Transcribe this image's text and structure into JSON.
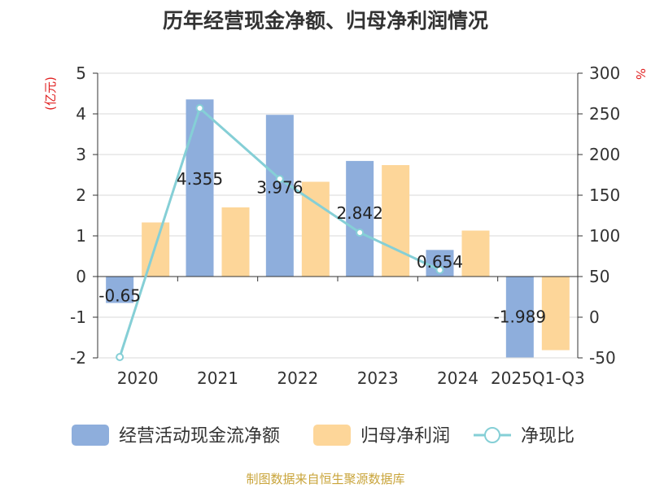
{
  "chart_data": {
    "type": "bar",
    "title": "历年经营现金净额、归母净利润情况",
    "categories": [
      "2020",
      "2021",
      "2022",
      "2023",
      "2024",
      "2025Q1-Q3"
    ],
    "series": [
      {
        "name": "经营活动现金流净额",
        "axis": "left",
        "kind": "bar",
        "values": [
          -0.65,
          4.355,
          3.976,
          2.842,
          0.654,
          -1.989
        ],
        "labels": [
          "-0.65",
          "4.355",
          "3.976",
          "2.842",
          "0.654",
          "-1.989"
        ]
      },
      {
        "name": "归母净利润",
        "axis": "left",
        "kind": "bar",
        "values": [
          1.33,
          null,
          2.33,
          2.74,
          1.13,
          -1.81
        ]
      },
      {
        "name": "净现比",
        "axis": "right",
        "kind": "line",
        "values": [
          -49,
          257,
          170,
          104,
          58,
          null
        ]
      }
    ],
    "y_left": {
      "label": "(亿元)",
      "min": -2,
      "max": 5,
      "ticks": [
        "-2",
        "-1",
        "0",
        "1",
        "2",
        "3",
        "4",
        "5"
      ]
    },
    "y_right": {
      "label": "%",
      "min": -50,
      "max": 300,
      "ticks": [
        "-50",
        "0",
        "50",
        "100",
        "150",
        "200",
        "250",
        "300"
      ]
    },
    "extra_values": {
      "归母净利润_2021": 1.7
    },
    "grid": true,
    "legend": "bottom",
    "colors": {
      "cash_flow": "#8eaedc",
      "net_profit": "#fdd699",
      "ratio_line": "#85cfd6",
      "axis_label_right": "#e02020",
      "axis_label_left": "#e02020",
      "source": "#c9a43a",
      "grid": "#d9d9d9",
      "axis": "#333333"
    }
  },
  "source": "制图数据来自恒生聚源数据库"
}
